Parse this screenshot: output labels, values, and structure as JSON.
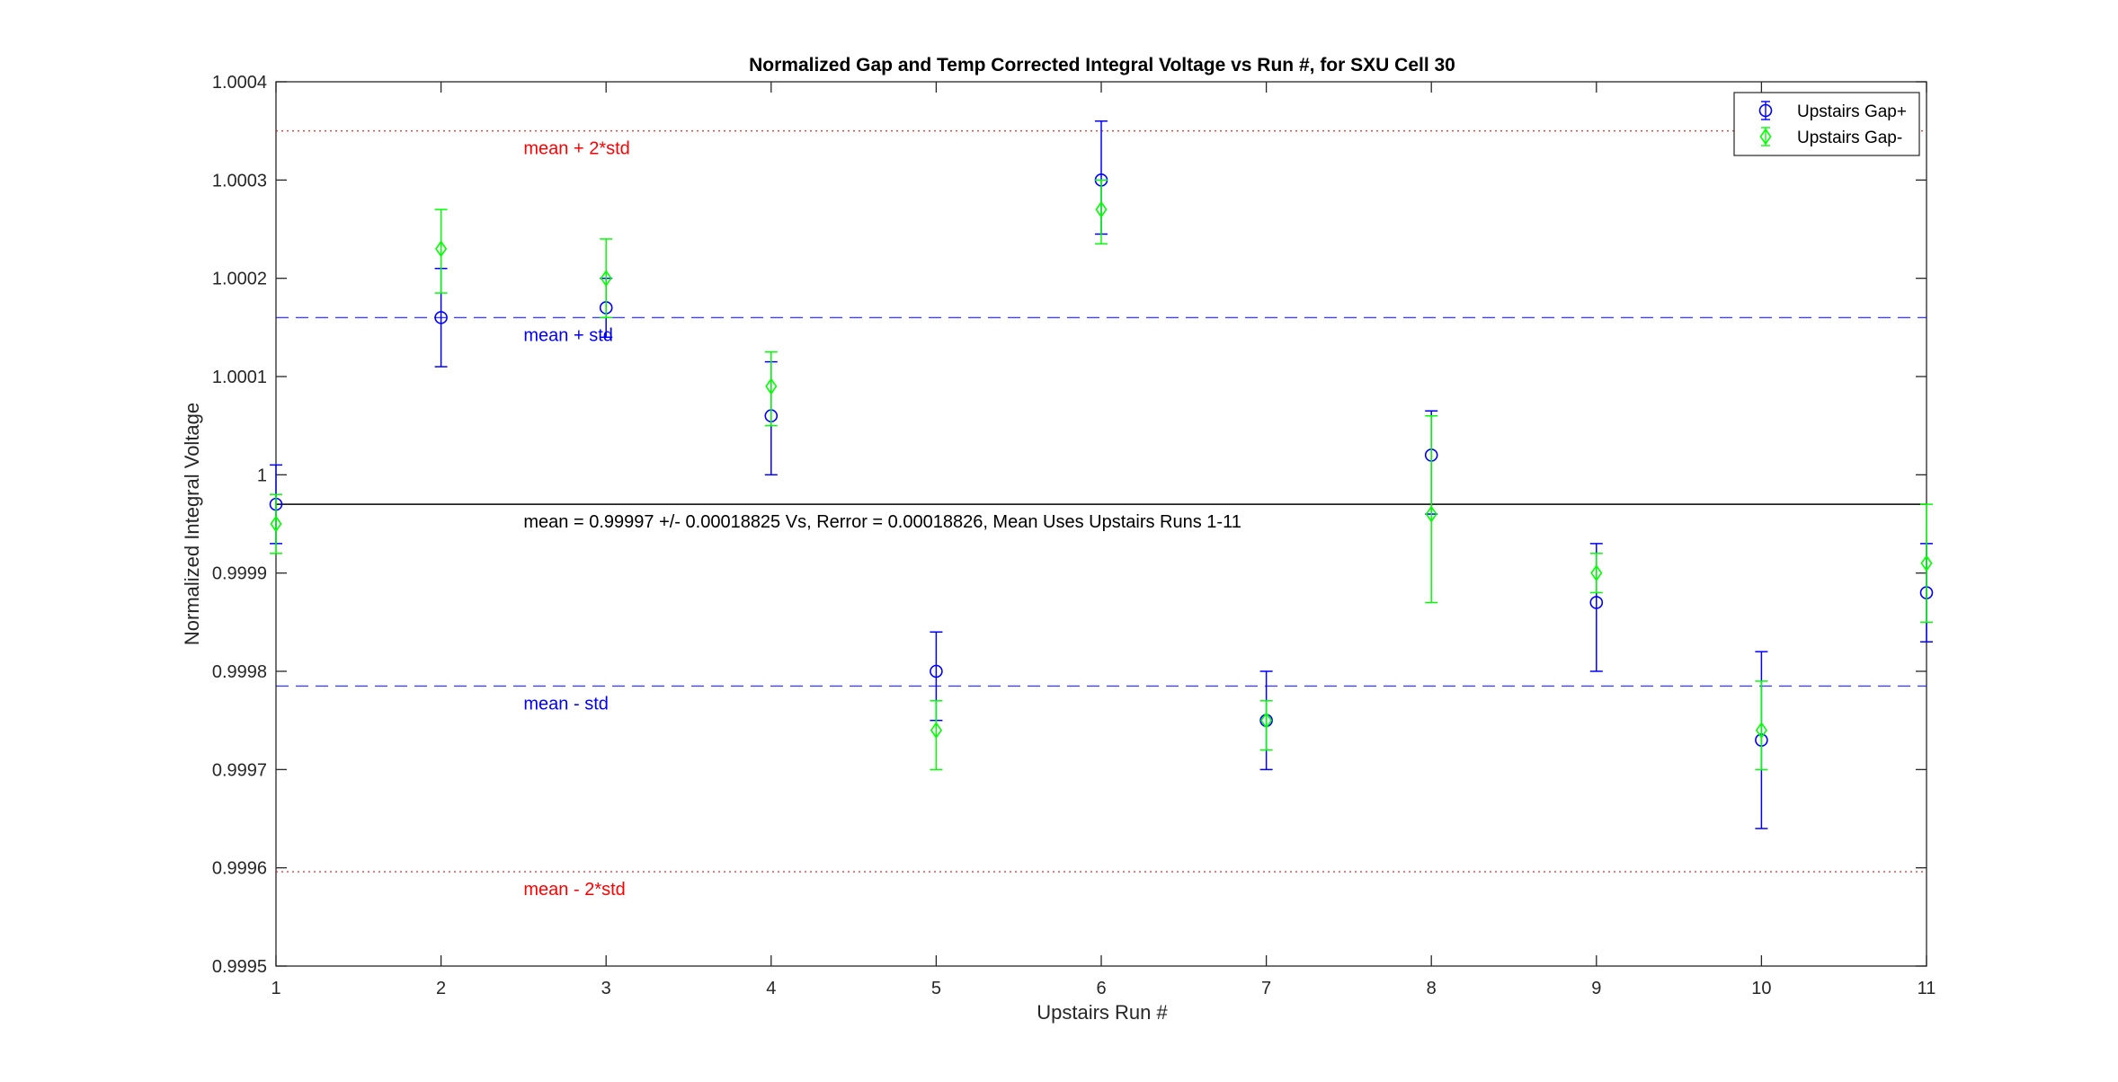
{
  "chart_data": {
    "type": "scatter",
    "title": "Normalized Gap and Temp Corrected Integral Voltage vs Run #, for SXU Cell 30",
    "xlabel": "Upstairs Run #",
    "ylabel": "Normalized Integral Voltage",
    "xlim": [
      1,
      11
    ],
    "ylim": [
      0.9995,
      1.0004
    ],
    "x_ticks": [
      1,
      2,
      3,
      4,
      5,
      6,
      7,
      8,
      9,
      10,
      11
    ],
    "x_tick_labels": [
      "1",
      "2",
      "3",
      "4",
      "5",
      "6",
      "7",
      "8",
      "9",
      "10",
      "11"
    ],
    "y_ticks": [
      0.9995,
      0.9996,
      0.9997,
      0.9998,
      0.9999,
      1.0,
      1.0001,
      1.0002,
      1.0003,
      1.0004
    ],
    "y_tick_labels": [
      "0.9995",
      "0.9996",
      "0.9997",
      "0.9998",
      "0.9999",
      "1",
      "1.0001",
      "1.0002",
      "1.0003",
      "1.0004"
    ],
    "grid": false,
    "legend_position": "top-right",
    "series": [
      {
        "name": "Upstairs Gap+",
        "color": "#0000ff",
        "marker": "circle",
        "x": [
          1,
          2,
          3,
          4,
          5,
          6,
          7,
          8,
          9,
          10,
          11
        ],
        "y": [
          0.99997,
          1.00016,
          1.00017,
          1.00006,
          0.9998,
          1.0003,
          0.99975,
          1.00002,
          0.99987,
          0.99973,
          0.99988
        ],
        "err_low": [
          0.99993,
          1.00011,
          1.00014,
          1.0,
          0.99975,
          1.000245,
          0.9997,
          0.99996,
          0.9998,
          0.99964,
          0.99983
        ],
        "err_high": [
          1.00001,
          1.00021,
          1.0002,
          1.000115,
          0.99984,
          1.00036,
          0.9998,
          1.000065,
          0.99993,
          0.99982,
          0.99993
        ]
      },
      {
        "name": "Upstairs Gap-",
        "color": "#00ff00",
        "marker": "diamond",
        "x": [
          1,
          2,
          3,
          4,
          5,
          6,
          7,
          8,
          9,
          10,
          11
        ],
        "y": [
          0.99995,
          1.00023,
          1.0002,
          1.00009,
          0.99974,
          1.00027,
          0.99975,
          0.99996,
          0.9999,
          0.99974,
          0.99991
        ],
        "err_low": [
          0.99992,
          1.000185,
          1.00016,
          1.00005,
          0.9997,
          1.000235,
          0.99972,
          0.99987,
          0.99988,
          0.9997,
          0.99985
        ],
        "err_high": [
          0.99998,
          1.00027,
          1.00024,
          1.000125,
          0.99977,
          1.0003,
          0.99977,
          1.00006,
          0.99992,
          0.99979,
          0.99997
        ]
      }
    ],
    "reference_lines": [
      {
        "value": 1.00035,
        "label": "mean + 2*std",
        "color": "#ff0000",
        "style": "dotted"
      },
      {
        "value": 1.00016,
        "label": "mean + std",
        "color": "#0000ff",
        "style": "dashed"
      },
      {
        "value": 0.99997,
        "label": "mean = 0.99997 +/- 0.00018825 Vs, Rerror = 0.00018826, Mean Uses Upstairs Runs 1-11",
        "color": "#000000",
        "style": "solid"
      },
      {
        "value": 0.999785,
        "label": "mean - std",
        "color": "#0000ff",
        "style": "dashed"
      },
      {
        "value": 0.999596,
        "label": "mean - 2*std",
        "color": "#ff0000",
        "style": "dotted"
      }
    ]
  }
}
